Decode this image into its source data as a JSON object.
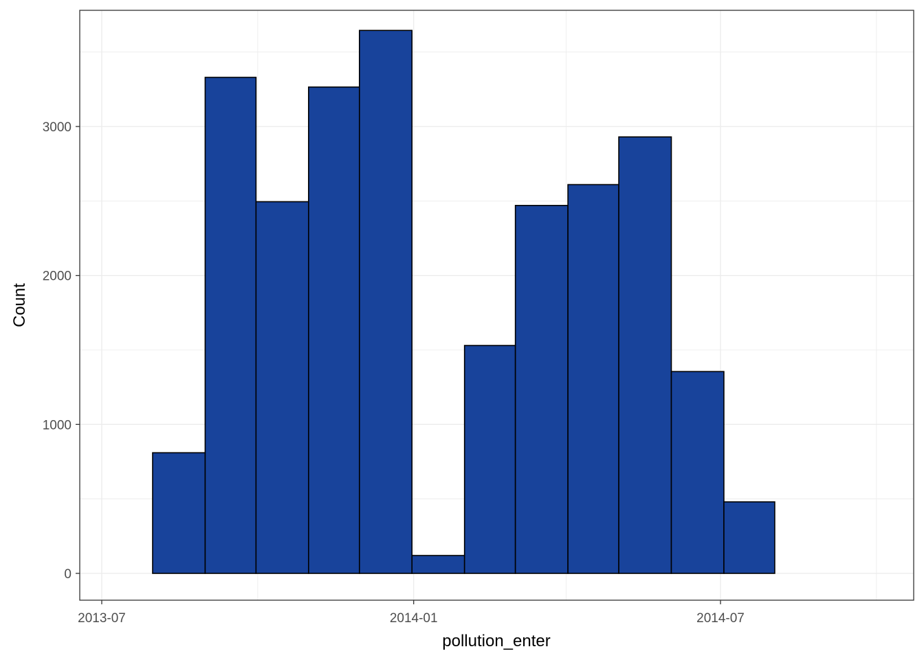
{
  "chart_data": {
    "type": "bar",
    "title": "",
    "xlabel": "pollution_enter",
    "ylabel": "Count",
    "x_ticks": [
      "2013-07",
      "2014-01",
      "2014-07"
    ],
    "y_ticks": [
      0,
      1000,
      2000,
      3000
    ],
    "ylim": [
      -180,
      3780
    ],
    "bins": [
      {
        "start": "2013-07-31",
        "end": "2013-08-31",
        "count": 810
      },
      {
        "start": "2013-08-31",
        "end": "2013-09-30",
        "count": 3330
      },
      {
        "start": "2013-09-30",
        "end": "2013-10-31",
        "count": 2495
      },
      {
        "start": "2013-10-31",
        "end": "2013-11-30",
        "count": 3265
      },
      {
        "start": "2013-11-30",
        "end": "2013-12-31",
        "count": 3645
      },
      {
        "start": "2013-12-31",
        "end": "2014-01-31",
        "count": 120
      },
      {
        "start": "2014-01-31",
        "end": "2014-03-02",
        "count": 1530
      },
      {
        "start": "2014-03-02",
        "end": "2014-04-02",
        "count": 2470
      },
      {
        "start": "2014-04-02",
        "end": "2014-05-02",
        "count": 2610
      },
      {
        "start": "2014-05-02",
        "end": "2014-06-02",
        "count": 2930
      },
      {
        "start": "2014-06-02",
        "end": "2014-07-03",
        "count": 1355
      },
      {
        "start": "2014-07-03",
        "end": "2014-08-02",
        "count": 480
      }
    ],
    "bar_fill": "#18439b",
    "bar_stroke": "#000000",
    "panel_border": "#333333",
    "grid_color": "#ebebeb",
    "grid": true,
    "legend": "none"
  }
}
